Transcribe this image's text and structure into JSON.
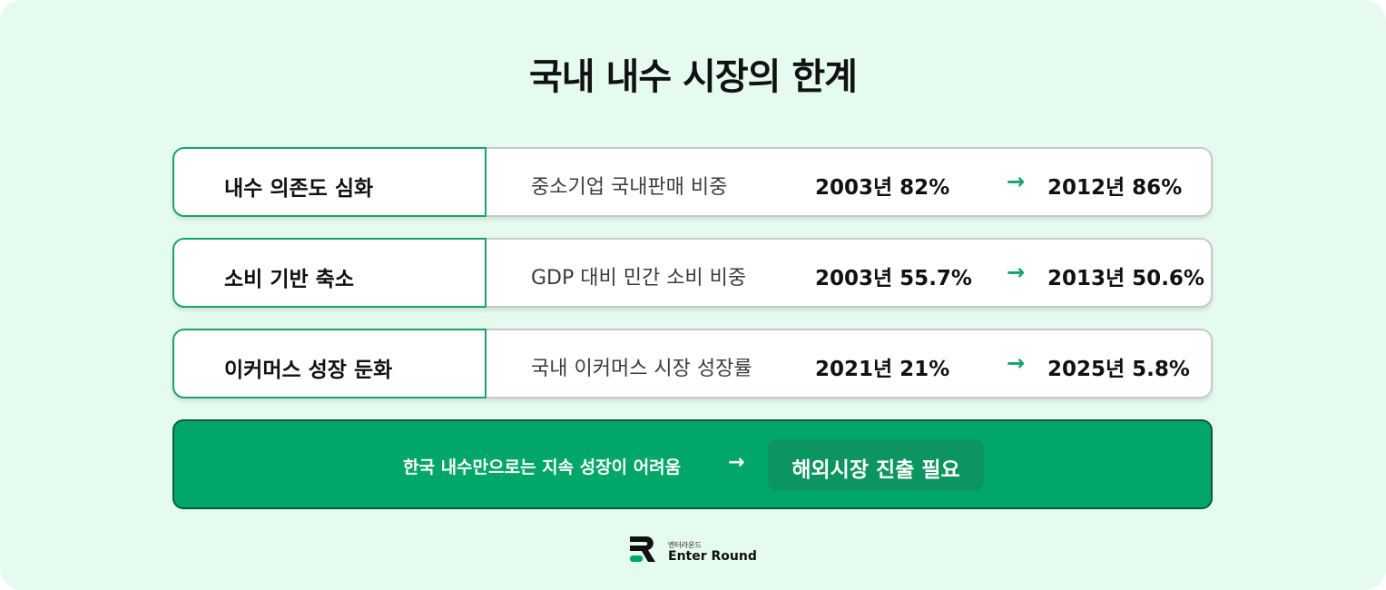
{
  "title": "국내 내수 시장의 한계",
  "rows": [
    {
      "label": "내수 의존도 심화",
      "metric": "중소기업 국내판매 비중",
      "from": "2003년 82%",
      "arrow": "→",
      "to": "2012년 86%"
    },
    {
      "label": "소비 기반 축소",
      "metric": "GDP 대비 민간 소비 비중",
      "from": "2003년 55.7%",
      "arrow": "→",
      "to": "2013년 50.6%"
    },
    {
      "label": "이커머스 성장 둔화",
      "metric": "국내 이커머스 시장 성장률",
      "from": "2021년 21%",
      "arrow": "→",
      "to": "2025년 5.8%"
    }
  ],
  "banner": {
    "text": "한국 내수만으로는 지속 성장이 어려움",
    "arrow": "→",
    "pill": "해외시장 진출 필요"
  },
  "logo": {
    "subtext": "엔터라운드",
    "name": "Enter Round",
    "icon": "enter-round-logo-icon"
  },
  "colors": {
    "background": "#e6fbef",
    "accent": "#00a66a",
    "accent_dark": "#0c9560",
    "arrow": "#14a46a"
  }
}
